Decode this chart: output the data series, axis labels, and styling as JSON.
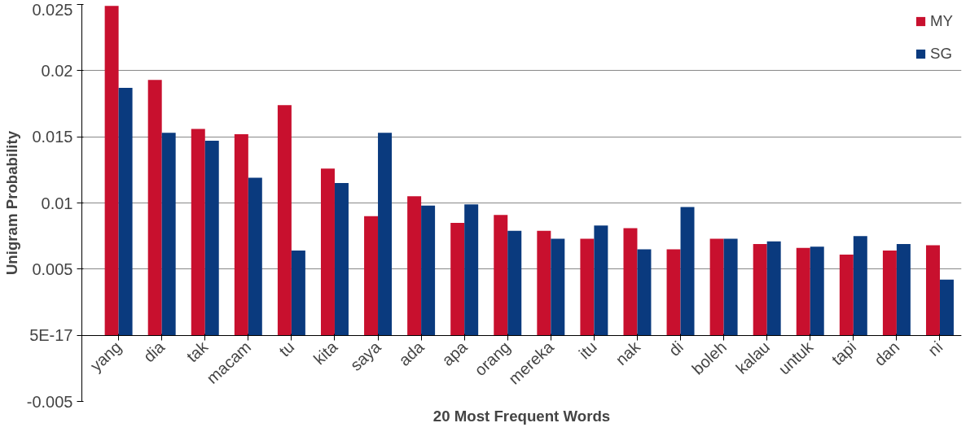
{
  "chart_data": {
    "type": "bar",
    "xlabel": "20 Most Frequent Words",
    "ylabel": "Unigram Probability",
    "categories": [
      "yang",
      "dia",
      "tak",
      "macam",
      "tu",
      "kita",
      "saya",
      "ada",
      "apa",
      "orang",
      "mereka",
      "itu",
      "nak",
      "di",
      "boleh",
      "kalau",
      "untuk",
      "tapi",
      "dan",
      "ni"
    ],
    "series": [
      {
        "name": "MY",
        "color": "#c8102e",
        "values": [
          0.0249,
          0.0193,
          0.0156,
          0.0152,
          0.0174,
          0.0126,
          0.009,
          0.0105,
          0.0085,
          0.0091,
          0.0079,
          0.0073,
          0.0081,
          0.0065,
          0.0073,
          0.0069,
          0.0066,
          0.0061,
          0.0064,
          0.0068
        ]
      },
      {
        "name": "SG",
        "color": "#0a3a7e",
        "values": [
          0.0187,
          0.0153,
          0.0147,
          0.0119,
          0.0064,
          0.0115,
          0.0153,
          0.0098,
          0.0099,
          0.0079,
          0.0073,
          0.0083,
          0.0065,
          0.0097,
          0.0073,
          0.0071,
          0.0067,
          0.0075,
          0.0069,
          0.0042
        ]
      }
    ],
    "ylim": [
      -0.005,
      0.025
    ],
    "yticks": [
      -0.005,
      {
        "value": 0,
        "label": "5E-17"
      },
      0.005,
      0.01,
      0.015,
      0.02,
      0.025
    ],
    "grid": "y",
    "legend": "top right"
  }
}
